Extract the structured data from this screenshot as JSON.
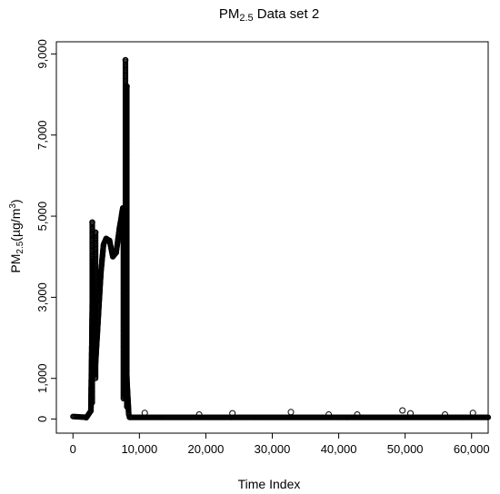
{
  "chart_data": {
    "type": "scatter",
    "title": {
      "main": "PM",
      "sub": "2.5",
      "rest": " Data set 2"
    },
    "xlabel": "Time Index",
    "ylabel": {
      "main": "PM",
      "sub": "2.5",
      "rest": "(µg/m",
      "sup": "3",
      "close": ")"
    },
    "xlim": [
      -2500,
      62500
    ],
    "ylim": [
      -350,
      9300
    ],
    "x_ticks": [
      0,
      10000,
      20000,
      30000,
      40000,
      50000,
      60000
    ],
    "x_tick_labels": [
      "0",
      "10,000",
      "20,000",
      "30,000",
      "40,000",
      "50,000",
      "60,000"
    ],
    "y_ticks": [
      0,
      1000,
      3000,
      5000,
      7000,
      9000
    ],
    "y_tick_labels": [
      "0",
      "1,000",
      "3,000",
      "5,000",
      "7,000",
      "9,000"
    ],
    "marker": "open-circle",
    "segments": [
      {
        "x": [
          0,
          2000
        ],
        "y": [
          60,
          40
        ]
      },
      {
        "x": [
          2000,
          2700,
          3000,
          3300,
          3700,
          4200,
          4600,
          5000,
          5500,
          6000,
          6500,
          7000,
          7500,
          7800,
          8000,
          8200,
          8400
        ],
        "y": [
          30,
          200,
          3900,
          1100,
          2200,
          3600,
          4300,
          4450,
          4400,
          4000,
          4100,
          4700,
          5200,
          3000,
          1400,
          700,
          100
        ]
      },
      {
        "x": [
          8500,
          62500
        ],
        "y": [
          40,
          40
        ]
      }
    ],
    "spikes": [
      {
        "x": 2900,
        "y_min": 400,
        "y_max": 4850
      },
      {
        "x": 3400,
        "y_min": 1000,
        "y_max": 4600
      },
      {
        "x": 7600,
        "y_min": 500,
        "y_max": 5200
      },
      {
        "x": 7900,
        "y_min": 500,
        "y_max": 8850
      },
      {
        "x": 8100,
        "y_min": 300,
        "y_max": 8200
      }
    ],
    "scattered_points": [
      {
        "x": 10800,
        "y": 150
      },
      {
        "x": 19000,
        "y": 110
      },
      {
        "x": 24000,
        "y": 140
      },
      {
        "x": 32800,
        "y": 170
      },
      {
        "x": 38500,
        "y": 110
      },
      {
        "x": 42800,
        "y": 110
      },
      {
        "x": 49600,
        "y": 210
      },
      {
        "x": 50800,
        "y": 140
      },
      {
        "x": 56000,
        "y": 110
      },
      {
        "x": 60200,
        "y": 150
      }
    ]
  }
}
